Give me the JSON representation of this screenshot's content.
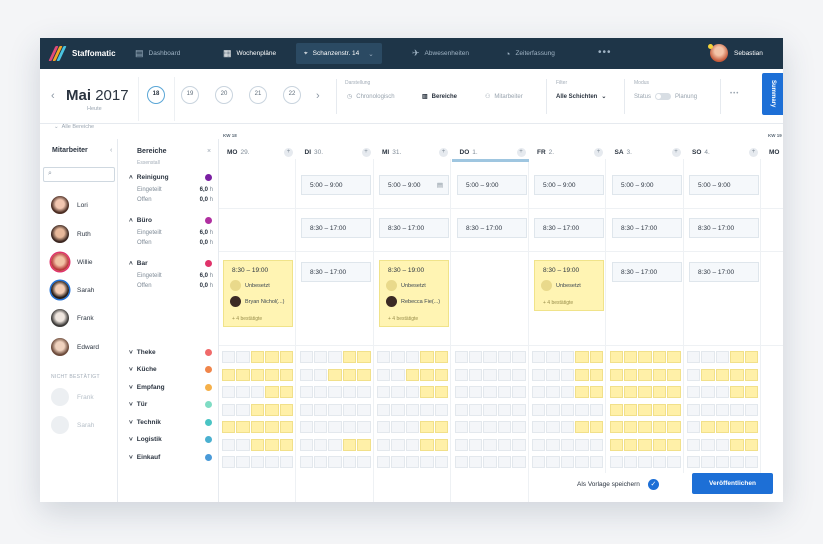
{
  "topbar": {
    "brand": "Staffomatic",
    "nav": [
      {
        "label": "Dashboard",
        "icon": "dashboard-icon"
      },
      {
        "label": "Wochenpläne",
        "icon": "calendar-icon"
      },
      {
        "label": "Schanzenstr. 14",
        "icon": "location-icon"
      },
      {
        "label": "Abwesenheiten",
        "icon": "plane-icon"
      },
      {
        "label": "Zeiterfassung",
        "icon": "stopwatch-icon"
      }
    ],
    "more": "•••",
    "user": "Sebastian"
  },
  "header": {
    "month": "Mai",
    "year": "2017",
    "today": "Heute",
    "weeks": [
      "18",
      "19",
      "20",
      "21",
      "22"
    ],
    "darstellung_label": "Darstellung",
    "darstellung_options": [
      "Chronologisch",
      "Bereiche",
      "Mitarbeiter"
    ],
    "filter_label": "Filter",
    "filter_value": "Alle Schichten",
    "modus_label": "Modus",
    "modus_status": "Status",
    "modus_planung": "Planung",
    "more": "•••",
    "summary": "Summary"
  },
  "alle_bereiche": "Alle Bereiche",
  "mitarbeiter": {
    "title": "Mitarbeiter",
    "employees": [
      "Lori",
      "Ruth",
      "Willie",
      "Sarah",
      "Frank",
      "Edward"
    ],
    "nicht_bestaetigt": "NICHT BESTÄTIGT",
    "unconfirmed": [
      "Frank",
      "Sarah"
    ]
  },
  "bereiche": {
    "title": "Bereiche",
    "subtitle": "Essenstall",
    "areas": [
      {
        "name": "Reinigung",
        "color": "#7a1fa2",
        "eingeteilt": "6,0",
        "offen": "0,0"
      },
      {
        "name": "Büro",
        "color": "#b02fa0",
        "eingeteilt": "6,0",
        "offen": "0,0"
      },
      {
        "name": "Bar",
        "color": "#e0336a",
        "eingeteilt": "6,0",
        "offen": "0,0"
      }
    ],
    "collapsed": [
      {
        "name": "Theke",
        "color": "#f06a6a"
      },
      {
        "name": "Küche",
        "color": "#f0854a"
      },
      {
        "name": "Empfang",
        "color": "#f5b04a"
      },
      {
        "name": "Tür",
        "color": "#7fdcc4"
      },
      {
        "name": "Technik",
        "color": "#4ac4c4"
      },
      {
        "name": "Logistik",
        "color": "#4ab0d0"
      },
      {
        "name": "Einkauf",
        "color": "#4a9ad8"
      }
    ],
    "eingeteilt_label": "Eingeteilt",
    "offen_label": "Offen",
    "unit": "h"
  },
  "week": {
    "kw_current": "KW 18",
    "kw_next": "KW 19",
    "days": [
      {
        "name": "MO",
        "date": "29."
      },
      {
        "name": "DI",
        "date": "30."
      },
      {
        "name": "MI",
        "date": "31."
      },
      {
        "name": "DO",
        "date": "1."
      },
      {
        "name": "FR",
        "date": "2."
      },
      {
        "name": "SA",
        "date": "3."
      },
      {
        "name": "SO",
        "date": "4."
      }
    ],
    "next_day": "MO",
    "shift_early": "5:00 – 9:00",
    "shift_day": "8:30 – 17:00",
    "shift_bar": "8:30 – 19:00",
    "unbesetzt": "Unbesetzt",
    "bryan": "Bryan Nichol(...)",
    "rebecca": "Rebecca Fie(...)",
    "bestaetigt": "+ 4 bestätigte"
  },
  "footer": {
    "vorlage": "Als Vorlage speichern",
    "publish": "Veröffentlichen"
  }
}
